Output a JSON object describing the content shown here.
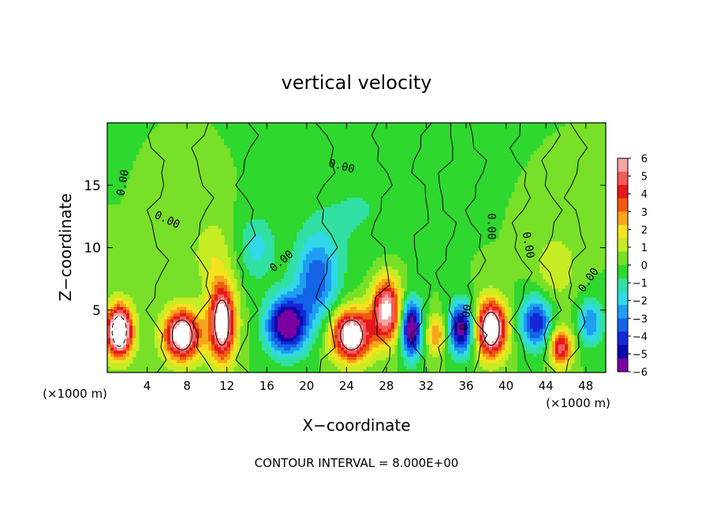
{
  "chart_data": {
    "type": "heatmap",
    "title": "vertical velocity",
    "xlabel": "X−coordinate",
    "ylabel": "Z−coordinate",
    "x_unit_left": "(×1000 m)",
    "x_unit_right": "(×1000 m)",
    "footer": "CONTOUR INTERVAL = 8.000E+00",
    "x_ticks": [
      "4",
      "8",
      "12",
      "16",
      "20",
      "24",
      "28",
      "32",
      "36",
      "40",
      "44",
      "48"
    ],
    "x_tick_values": [
      4,
      8,
      12,
      16,
      20,
      24,
      28,
      32,
      36,
      40,
      44,
      48
    ],
    "xlim": [
      0,
      50
    ],
    "y_ticks": [
      "5",
      "10",
      "15"
    ],
    "y_tick_values": [
      5,
      10,
      15
    ],
    "ylim": [
      0,
      20
    ],
    "contour_label": "0.00",
    "colorbar": {
      "labels": [
        "6",
        "5",
        "4",
        "3",
        "2",
        "1",
        "0",
        "−1",
        "−2",
        "−3",
        "−4",
        "−5",
        "−6"
      ],
      "values": [
        6,
        5,
        4,
        3,
        2,
        1,
        0,
        -1,
        -2,
        -3,
        -4,
        -5,
        -6
      ],
      "colors": [
        "#f7a4a4",
        "#f25b5b",
        "#e51919",
        "#f05a0f",
        "#f7a51e",
        "#f5e21e",
        "#c6ec24",
        "#78e028",
        "#2ed82e",
        "#31e0a2",
        "#30d8e8",
        "#1e9ff0",
        "#1464e8",
        "#1428d8",
        "#0a0aa8",
        "#7a00a0"
      ]
    },
    "features": [
      {
        "x": 1.2,
        "z": 3.3,
        "w": 9,
        "rx": 1.3,
        "rz": 2.0
      },
      {
        "x": 7.5,
        "z": 3.0,
        "w": 7.5,
        "rx": 1.8,
        "rz": 2.0
      },
      {
        "x": 11.5,
        "z": 4.0,
        "w": 7.5,
        "rx": 1.3,
        "rz": 3.0
      },
      {
        "x": 18.0,
        "z": 3.8,
        "w": -6.5,
        "rx": 2.0,
        "rz": 2.2
      },
      {
        "x": 21.0,
        "z": 7.5,
        "w": -3.5,
        "rx": 2.2,
        "rz": 3.5
      },
      {
        "x": 24.5,
        "z": 3.0,
        "w": 7.5,
        "rx": 2.0,
        "rz": 2.0
      },
      {
        "x": 28.0,
        "z": 5.0,
        "w": 6.5,
        "rx": 1.4,
        "rz": 2.5
      },
      {
        "x": 30.5,
        "z": 3.5,
        "w": -6.5,
        "rx": 1.0,
        "rz": 2.2
      },
      {
        "x": 33.0,
        "z": 3.0,
        "w": 3.0,
        "rx": 1.0,
        "rz": 1.5
      },
      {
        "x": 35.5,
        "z": 3.5,
        "w": -6.0,
        "rx": 1.2,
        "rz": 2.0
      },
      {
        "x": 38.5,
        "z": 3.5,
        "w": 8.0,
        "rx": 1.5,
        "rz": 2.2
      },
      {
        "x": 43.0,
        "z": 4.0,
        "w": -4.5,
        "rx": 1.5,
        "rz": 2.0
      },
      {
        "x": 45.5,
        "z": 2.0,
        "w": 5.0,
        "rx": 1.1,
        "rz": 1.5
      },
      {
        "x": 48.5,
        "z": 4.0,
        "w": -3.0,
        "rx": 1.2,
        "rz": 1.8
      },
      {
        "x": 15.0,
        "z": 10.0,
        "w": -1.8,
        "rx": 1.8,
        "rz": 2.5
      },
      {
        "x": 45.0,
        "z": 8.5,
        "w": 1.5,
        "rx": 2.0,
        "rz": 2.5
      },
      {
        "x": 10.5,
        "z": 9.5,
        "w": 1.3,
        "rx": 2.0,
        "rz": 3.0
      },
      {
        "x": 25.0,
        "z": 13.0,
        "w": -0.8,
        "rx": 5.0,
        "rz": 4.0
      }
    ]
  }
}
